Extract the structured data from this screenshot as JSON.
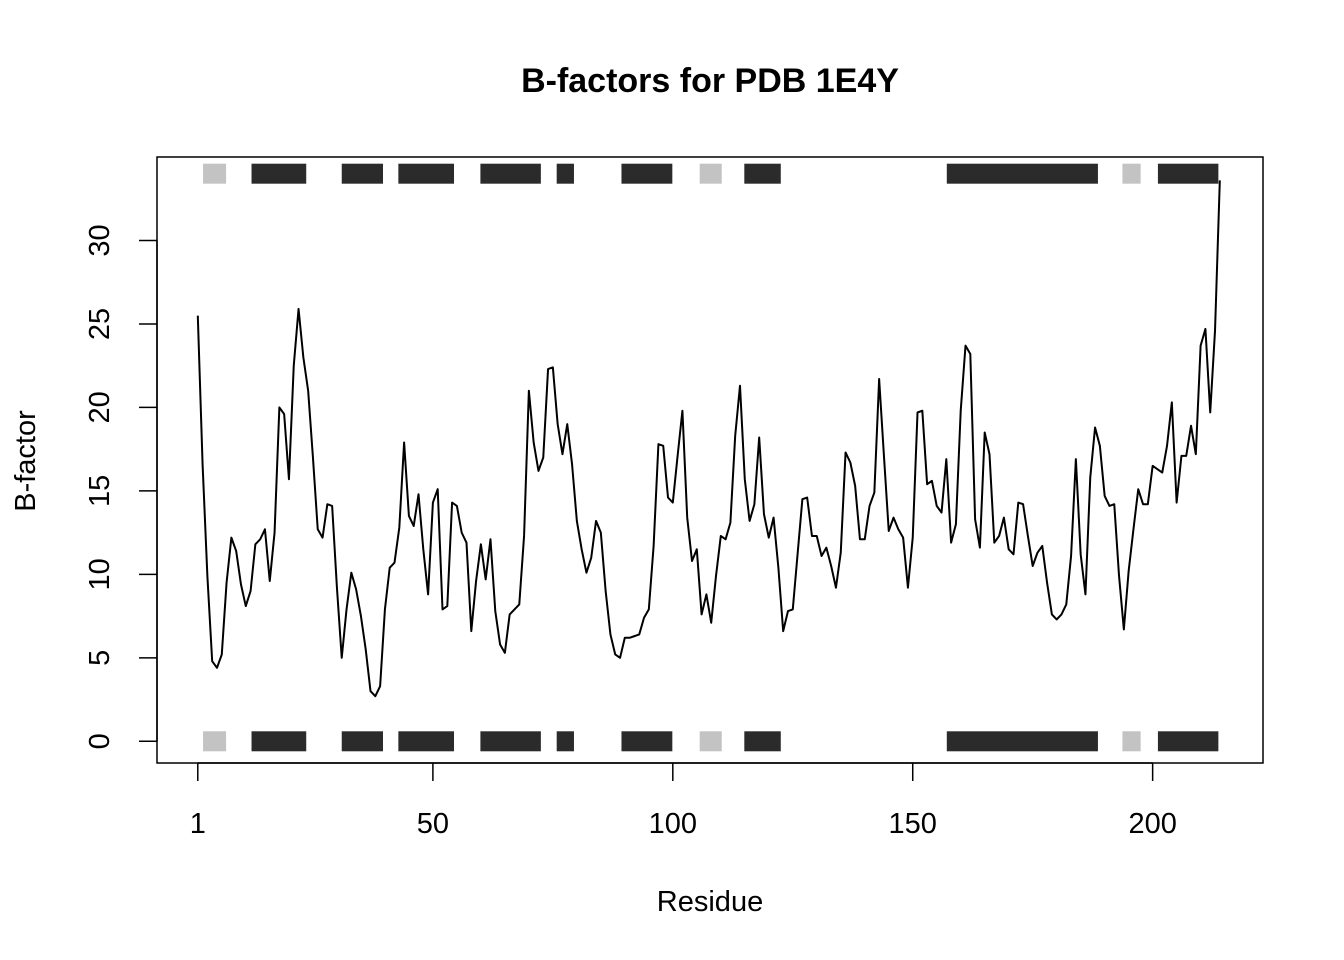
{
  "chart_data": {
    "type": "line",
    "title": "B-factors for PDB 1E4Y",
    "xlabel": "Residue",
    "ylabel": "B-factor",
    "xlim": [
      -7.5,
      223
    ],
    "ylim": [
      -1.3,
      35.0
    ],
    "x_ticks": [
      1,
      50,
      100,
      150,
      200
    ],
    "x_tick_labels": [
      "1",
      "50",
      "100",
      "150",
      "200"
    ],
    "y_ticks": [
      0,
      5,
      10,
      15,
      20,
      25,
      30
    ],
    "y_tick_labels": [
      "0",
      "5",
      "10",
      "15",
      "20",
      "25",
      "30"
    ],
    "grid": false,
    "legend": "none",
    "series": [
      {
        "x_start": 1,
        "x_step": 1,
        "color": "#000000",
        "values": [
          25.5,
          16.6,
          9.9,
          4.8,
          4.4,
          5.2,
          9.5,
          12.2,
          11.4,
          9.4,
          8.1,
          9.0,
          11.8,
          12.1,
          12.7,
          9.6,
          12.5,
          20.0,
          19.6,
          15.7,
          22.5,
          25.9,
          23.0,
          21.0,
          17.0,
          12.7,
          12.2,
          14.2,
          14.1,
          9.2,
          5.0,
          7.9,
          10.1,
          9.1,
          7.5,
          5.5,
          3.0,
          2.7,
          3.3,
          7.9,
          10.4,
          10.7,
          12.8,
          17.9,
          13.5,
          12.9,
          14.8,
          11.5,
          8.8,
          14.3,
          15.1,
          7.9,
          8.1,
          14.3,
          14.1,
          12.5,
          11.9,
          6.6,
          9.6,
          11.8,
          9.7,
          12.1,
          7.8,
          5.8,
          5.3,
          7.6,
          7.9,
          8.2,
          12.3,
          21.0,
          17.9,
          16.2,
          17.0,
          22.3,
          22.4,
          19.0,
          17.2,
          19.0,
          16.6,
          13.2,
          11.5,
          10.1,
          11.0,
          13.2,
          12.5,
          9.0,
          6.4,
          5.2,
          5.0,
          6.2,
          6.2,
          6.3,
          6.4,
          7.4,
          7.9,
          11.7,
          17.8,
          17.7,
          14.6,
          14.3,
          17.1,
          19.8,
          13.4,
          10.8,
          11.5,
          7.6,
          8.8,
          7.1,
          9.9,
          12.3,
          12.1,
          13.1,
          18.3,
          21.3,
          15.7,
          13.2,
          14.2,
          18.2,
          13.6,
          12.2,
          13.4,
          10.4,
          6.6,
          7.8,
          7.9,
          11.2,
          14.5,
          14.6,
          12.3,
          12.3,
          11.1,
          11.6,
          10.5,
          9.2,
          11.3,
          17.3,
          16.7,
          15.3,
          12.1,
          12.1,
          14.1,
          14.9,
          21.7,
          17.1,
          12.6,
          13.4,
          12.7,
          12.2,
          9.2,
          12.2,
          19.7,
          19.8,
          15.4,
          15.6,
          14.1,
          13.7,
          16.9,
          11.9,
          13.0,
          19.8,
          23.7,
          23.2,
          13.3,
          11.6,
          18.5,
          17.2,
          11.9,
          12.3,
          13.4,
          11.5,
          11.2,
          14.3,
          14.2,
          12.3,
          10.5,
          11.3,
          11.7,
          9.5,
          7.6,
          7.3,
          7.6,
          8.2,
          11.1,
          16.9,
          11.2,
          8.8,
          15.8,
          18.8,
          17.7,
          14.7,
          14.1,
          14.2,
          9.9,
          6.7,
          10.2,
          12.7,
          15.1,
          14.2,
          14.2,
          16.5,
          16.3,
          16.1,
          17.7,
          20.3,
          14.3,
          17.1,
          17.1,
          18.9,
          17.2,
          23.7,
          24.7,
          19.7,
          24.6,
          33.6
        ]
      }
    ],
    "sse_bands": {
      "top_y": 34.0,
      "bottom_y": 0.0,
      "strand_color": "#2b2b2b",
      "helix_color": "#c3c3c3",
      "segments": [
        {
          "kind": "helix",
          "start": 2.1,
          "end": 6.9
        },
        {
          "kind": "strand",
          "start": 12.2,
          "end": 23.6
        },
        {
          "kind": "strand",
          "start": 31.0,
          "end": 39.6
        },
        {
          "kind": "strand",
          "start": 42.8,
          "end": 54.4
        },
        {
          "kind": "strand",
          "start": 59.9,
          "end": 72.5
        },
        {
          "kind": "strand",
          "start": 75.8,
          "end": 79.4
        },
        {
          "kind": "strand",
          "start": 89.3,
          "end": 99.9
        },
        {
          "kind": "helix",
          "start": 105.6,
          "end": 110.2
        },
        {
          "kind": "strand",
          "start": 114.9,
          "end": 122.5
        },
        {
          "kind": "strand",
          "start": 157.1,
          "end": 188.6
        },
        {
          "kind": "helix",
          "start": 193.7,
          "end": 197.5
        },
        {
          "kind": "strand",
          "start": 201.1,
          "end": 213.7
        }
      ]
    }
  }
}
